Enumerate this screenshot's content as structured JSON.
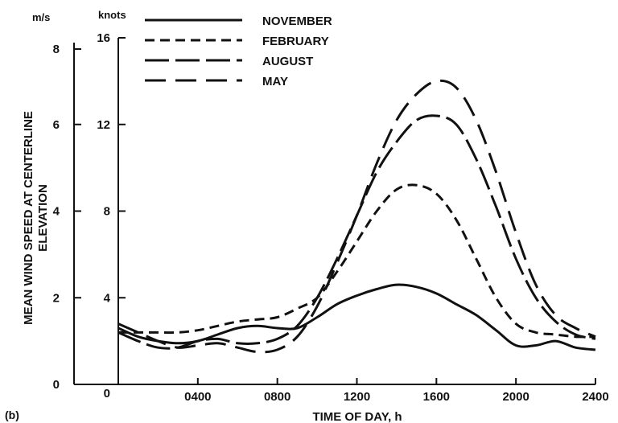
{
  "chart_data": {
    "type": "line",
    "panel_label": "(b)",
    "xlabel": "TIME OF DAY, h",
    "ylabel_lines": [
      "MEAN WIND SPEED AT CENTERLINE",
      "ELEVATION"
    ],
    "x_ticks": [
      "0",
      "0400",
      "0800",
      "1200",
      "1600",
      "2000",
      "2400"
    ],
    "x_tick_hours": [
      0,
      4,
      8,
      12,
      16,
      20,
      24
    ],
    "xlim": [
      0,
      24
    ],
    "y_left": {
      "unit": "m/s",
      "ticks": [
        "0",
        "2",
        "4",
        "6",
        "8"
      ],
      "tick_values": [
        0,
        2,
        4,
        6,
        8
      ],
      "lim": [
        0,
        8
      ]
    },
    "y_right": {
      "unit": "knots",
      "ticks": [
        "4",
        "8",
        "12",
        "16"
      ],
      "tick_values": [
        4,
        8,
        12,
        16
      ],
      "lim": [
        0,
        16
      ]
    },
    "grid": false,
    "legend_position": "top",
    "series": [
      {
        "name": "NOVEMBER",
        "dash": "solid",
        "x": [
          0,
          1,
          2,
          3,
          4,
          5,
          6,
          7,
          8,
          9,
          10,
          11,
          12,
          13,
          14,
          15,
          16,
          17,
          18,
          19,
          20,
          21,
          22,
          23,
          24
        ],
        "y": [
          1.3,
          1.1,
          1.0,
          0.95,
          1.0,
          1.15,
          1.3,
          1.35,
          1.3,
          1.3,
          1.55,
          1.85,
          2.05,
          2.2,
          2.3,
          2.25,
          2.1,
          1.85,
          1.6,
          1.25,
          0.9,
          0.9,
          1.0,
          0.85,
          0.8
        ]
      },
      {
        "name": "FEBRUARY",
        "dash": "short",
        "x": [
          0,
          1,
          2,
          3,
          4,
          5,
          6,
          7,
          8,
          9,
          10,
          11,
          12,
          13,
          14,
          15,
          16,
          17,
          18,
          19,
          20,
          21,
          22,
          23,
          24
        ],
        "y": [
          1.2,
          1.2,
          1.2,
          1.2,
          1.25,
          1.35,
          1.45,
          1.5,
          1.55,
          1.75,
          2.0,
          2.6,
          3.3,
          4.0,
          4.5,
          4.6,
          4.4,
          3.8,
          2.9,
          2.0,
          1.4,
          1.2,
          1.15,
          1.1,
          1.1
        ]
      },
      {
        "name": "AUGUST",
        "dash": "long",
        "x": [
          0,
          1,
          2,
          3,
          4,
          5,
          6,
          7,
          8,
          9,
          10,
          11,
          12,
          13,
          14,
          15,
          16,
          17,
          18,
          19,
          20,
          21,
          22,
          23,
          24
        ],
        "y": [
          1.2,
          1.0,
          0.85,
          0.85,
          1.0,
          1.05,
          0.95,
          0.95,
          1.05,
          1.35,
          2.0,
          2.9,
          3.9,
          4.9,
          5.6,
          6.1,
          6.2,
          6.0,
          5.2,
          4.1,
          2.9,
          2.0,
          1.45,
          1.15,
          1.05
        ]
      },
      {
        "name": "MAY",
        "dash": "long-medium",
        "x": [
          0,
          1,
          2,
          3,
          4,
          5,
          6,
          7,
          8,
          9,
          10,
          11,
          12,
          13,
          14,
          15,
          16,
          17,
          18,
          19,
          20,
          21,
          22,
          23,
          24
        ],
        "y": [
          1.4,
          1.2,
          1.0,
          0.85,
          0.9,
          0.95,
          0.85,
          0.75,
          0.8,
          1.1,
          1.8,
          2.8,
          3.9,
          5.1,
          6.1,
          6.7,
          7.0,
          6.85,
          6.1,
          4.9,
          3.5,
          2.3,
          1.6,
          1.3,
          1.1
        ]
      }
    ]
  }
}
